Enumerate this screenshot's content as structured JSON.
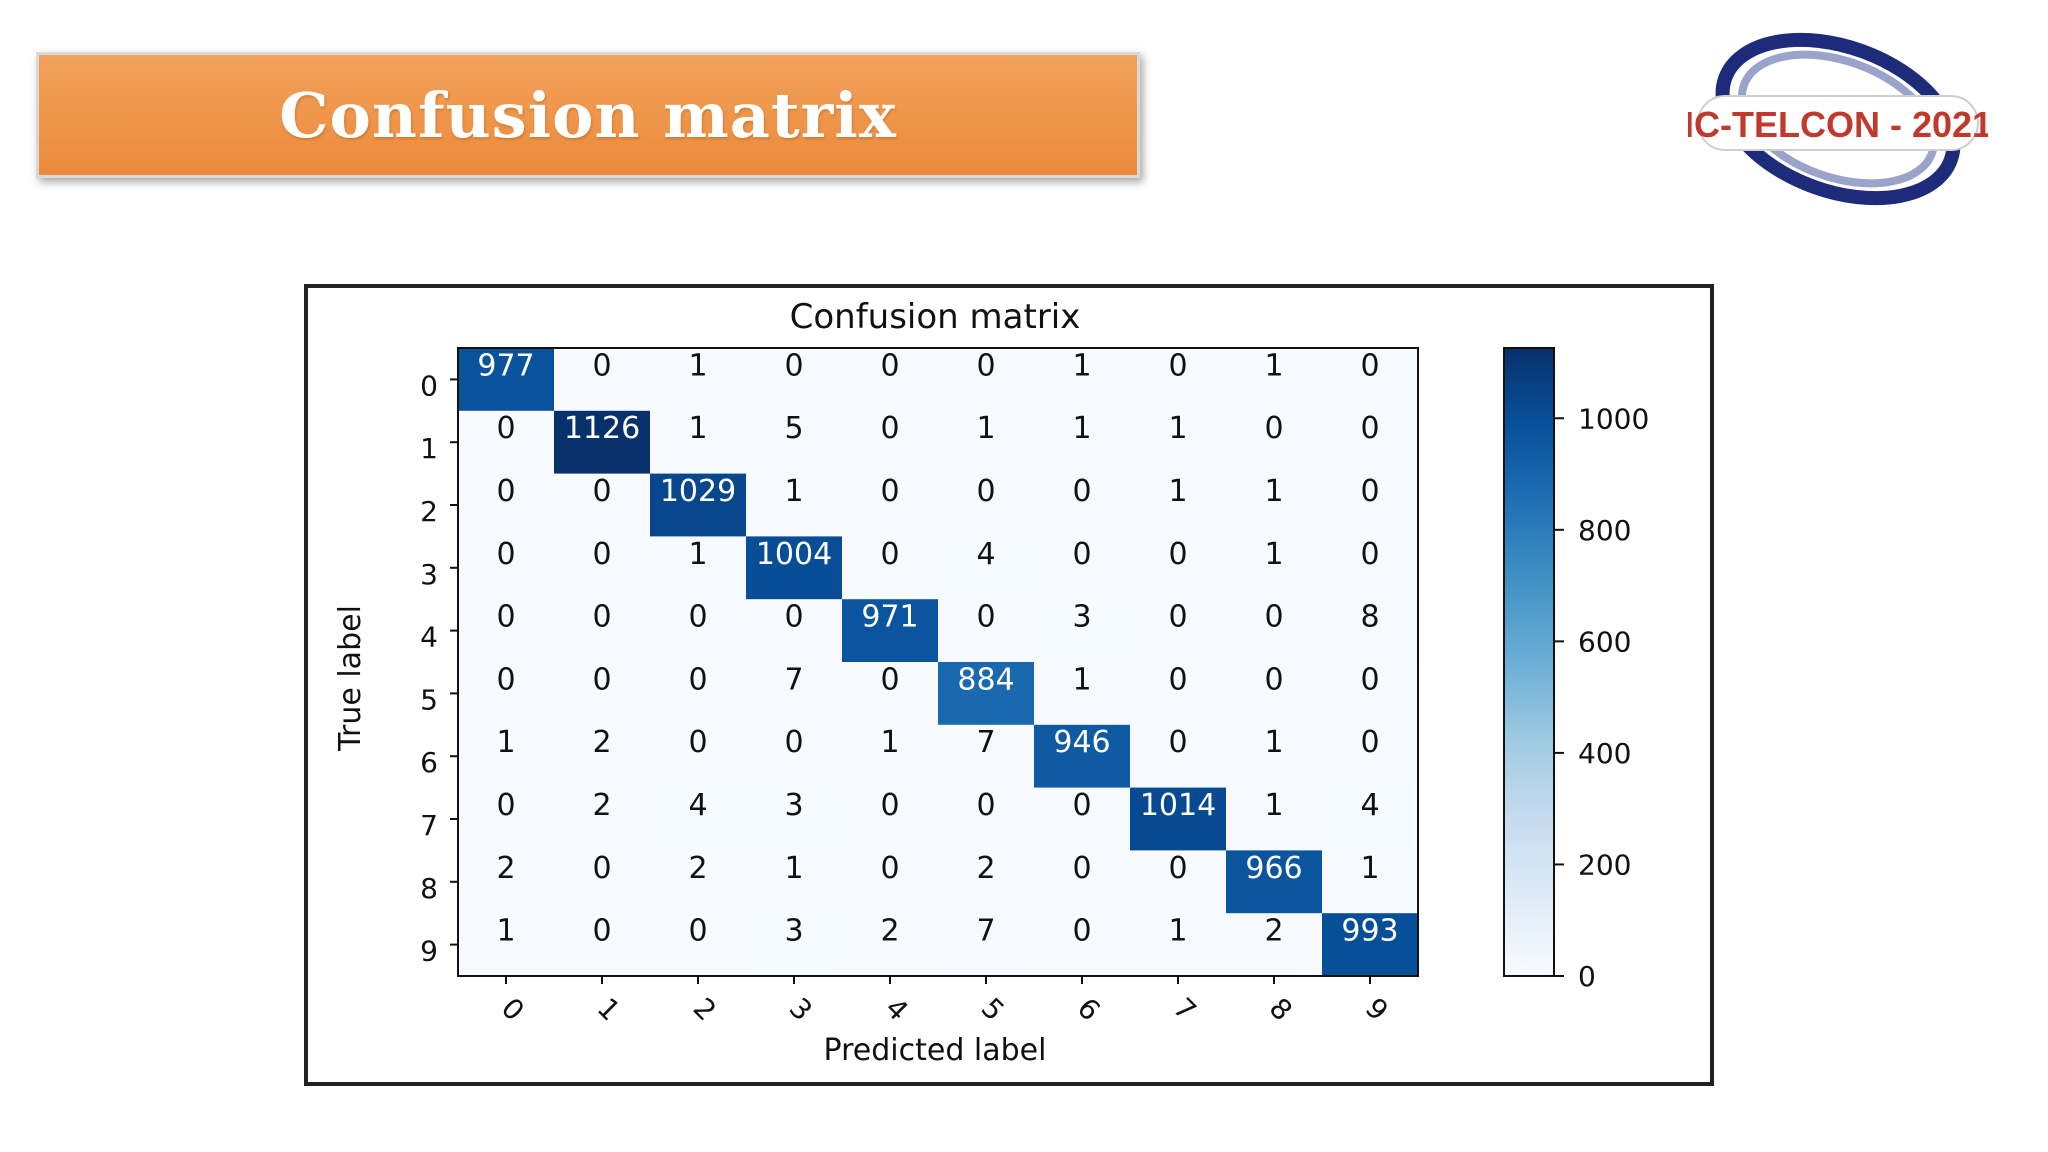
{
  "slide": {
    "title": "Confusion matrix",
    "logo_text": "IC-TELCON - 2021",
    "banner_color": "#ee8f43",
    "logo_colors": {
      "ring_dark": "#1e2a7a",
      "ring_light": "#9aa3c9",
      "text": "#c0392b"
    }
  },
  "chart_data": {
    "type": "heatmap",
    "title": "Confusion matrix",
    "xlabel": "Predicted label",
    "ylabel": "True label",
    "x_categories": [
      "0",
      "1",
      "2",
      "3",
      "4",
      "5",
      "6",
      "7",
      "8",
      "9"
    ],
    "y_categories": [
      "0",
      "1",
      "2",
      "3",
      "4",
      "5",
      "6",
      "7",
      "8",
      "9"
    ],
    "matrix": [
      [
        977,
        0,
        1,
        0,
        0,
        0,
        1,
        0,
        1,
        0
      ],
      [
        0,
        1126,
        1,
        5,
        0,
        1,
        1,
        1,
        0,
        0
      ],
      [
        0,
        0,
        1029,
        1,
        0,
        0,
        0,
        1,
        1,
        0
      ],
      [
        0,
        0,
        1,
        1004,
        0,
        4,
        0,
        0,
        1,
        0
      ],
      [
        0,
        0,
        0,
        0,
        971,
        0,
        3,
        0,
        0,
        8
      ],
      [
        0,
        0,
        0,
        7,
        0,
        884,
        1,
        0,
        0,
        0
      ],
      [
        1,
        2,
        0,
        0,
        1,
        7,
        946,
        0,
        1,
        0
      ],
      [
        0,
        2,
        4,
        3,
        0,
        0,
        0,
        1014,
        1,
        4
      ],
      [
        2,
        0,
        2,
        1,
        0,
        2,
        0,
        0,
        966,
        1
      ],
      [
        1,
        0,
        0,
        3,
        2,
        7,
        0,
        1,
        2,
        993
      ]
    ],
    "colorbar": {
      "min": 0,
      "max": 1126,
      "ticks": [
        0,
        200,
        400,
        600,
        800,
        1000
      ],
      "colormap": "Blues"
    },
    "x_tick_rotation": 45
  }
}
